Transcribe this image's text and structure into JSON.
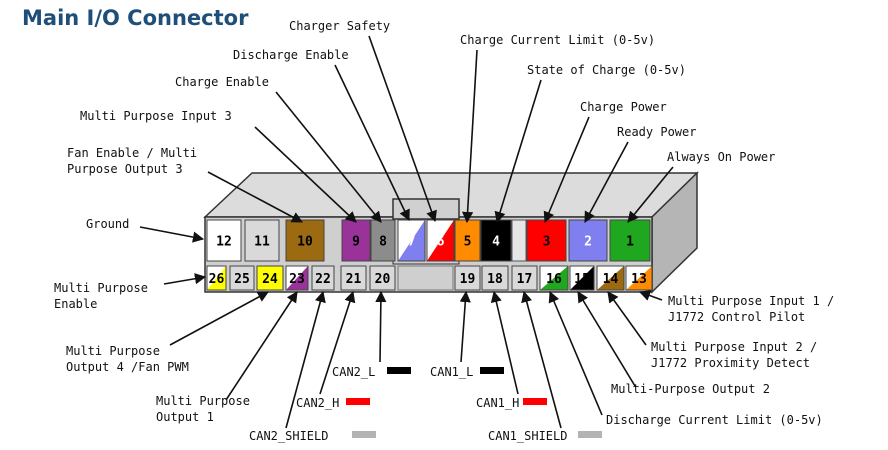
{
  "title": "Main I/O Connector",
  "colors": {
    "title": "#1f4e79",
    "housing": "#cfcfcf",
    "housing_dark": "#a9a9a9",
    "outline": "#333333"
  },
  "pins": [
    {
      "num": "1",
      "fill": "#1fa81f",
      "text_color": "#000000"
    },
    {
      "num": "2",
      "fill": "#7f7ff0",
      "text_color": "#ffffff"
    },
    {
      "num": "3",
      "fill": "#ff0000",
      "text_color": "#000000"
    },
    {
      "num": "4",
      "fill": "#000000",
      "text_color": "#ffffff"
    },
    {
      "num": "5",
      "fill": "#ff8c00",
      "text_color": "#000000"
    },
    {
      "num": "6",
      "fill": "#ff0000",
      "fill2": "#ffffff",
      "text_color": "#ffffff"
    },
    {
      "num": "7",
      "fill": "#7f7ff0",
      "fill2": "#ffffff",
      "text_color": "#ffffff"
    },
    {
      "num": "8",
      "fill": "#8c8c8c",
      "text_color": "#000000"
    },
    {
      "num": "9",
      "fill": "#993399",
      "text_color": "#000000"
    },
    {
      "num": "10",
      "fill": "#9c6a10",
      "text_color": "#000000"
    },
    {
      "num": "11",
      "fill": "#d9d9d9",
      "text_color": "#000000"
    },
    {
      "num": "12",
      "fill": "#ffffff",
      "text_color": "#000000"
    },
    {
      "num": "13",
      "fill": "#ff8c00",
      "fill2": "#ffffff",
      "text_color": "#000000"
    },
    {
      "num": "14",
      "fill": "#9c6a10",
      "fill2": "#ffffff",
      "text_color": "#000000"
    },
    {
      "num": "15",
      "fill": "#000000",
      "fill2": "#ffffff",
      "text_color": "#000000"
    },
    {
      "num": "16",
      "fill": "#1fa81f",
      "fill2": "#ffffff",
      "text_color": "#000000"
    },
    {
      "num": "17",
      "fill": "#d9d9d9",
      "text_color": "#000000"
    },
    {
      "num": "18",
      "fill": "#d9d9d9",
      "text_color": "#000000"
    },
    {
      "num": "19",
      "fill": "#d9d9d9",
      "text_color": "#000000"
    },
    {
      "num": "20",
      "fill": "#d9d9d9",
      "text_color": "#000000"
    },
    {
      "num": "21",
      "fill": "#d9d9d9",
      "text_color": "#000000"
    },
    {
      "num": "22",
      "fill": "#d9d9d9",
      "text_color": "#000000"
    },
    {
      "num": "23",
      "fill": "#993399",
      "fill2": "#ffffff",
      "text_color": "#000000"
    },
    {
      "num": "24",
      "fill": "#ffff00",
      "text_color": "#000000"
    },
    {
      "num": "25",
      "fill": "#d9d9d9",
      "text_color": "#000000"
    },
    {
      "num": "26",
      "fill": "#ffff00",
      "fill2": "#ffffff",
      "text_color": "#000000"
    }
  ],
  "labels": [
    {
      "text": "Charger Safety",
      "pin": "6"
    },
    {
      "text": "Discharge Enable",
      "pin": "7"
    },
    {
      "text": "Charge Enable",
      "pin": "8"
    },
    {
      "text": "Multi Purpose Input 3",
      "pin": "9"
    },
    {
      "text": "Fan Enable / Multi",
      "pin": "10"
    },
    {
      "text": "Purpose Output 3",
      "pin": "10"
    },
    {
      "text": "Ground",
      "pin": "12"
    },
    {
      "text": "Charge Current Limit (0-5v)",
      "pin": "5"
    },
    {
      "text": "State of Charge (0-5v)",
      "pin": "4"
    },
    {
      "text": "Charge Power",
      "pin": "3"
    },
    {
      "text": "Ready Power",
      "pin": "2"
    },
    {
      "text": "Always On Power",
      "pin": "1"
    },
    {
      "text": "Multi Purpose",
      "pin": "26"
    },
    {
      "text": "Enable",
      "pin": "26"
    },
    {
      "text": "Multi Purpose",
      "pin": "24"
    },
    {
      "text": "Output 4 /Fan PWM",
      "pin": "24"
    },
    {
      "text": "Multi Purpose",
      "pin": "23"
    },
    {
      "text": "Output 1",
      "pin": "23"
    },
    {
      "text": "CAN2_SHIELD",
      "pin": "22",
      "swatch": "#b3b3b3"
    },
    {
      "text": "CAN2_H",
      "pin": "21",
      "swatch": "#ff0000"
    },
    {
      "text": "CAN2_L",
      "pin": "20",
      "swatch": "#000000"
    },
    {
      "text": "CAN1_L",
      "pin": "19",
      "swatch": "#000000"
    },
    {
      "text": "CAN1_H",
      "pin": "18",
      "swatch": "#ff0000"
    },
    {
      "text": "CAN1_SHIELD",
      "pin": "17",
      "swatch": "#b3b3b3"
    },
    {
      "text": "Discharge Current Limit (0-5v)",
      "pin": "16"
    },
    {
      "text": "Multi-Purpose Output 2",
      "pin": "15"
    },
    {
      "text": "Multi Purpose Input 2 /",
      "pin": "14"
    },
    {
      "text": "J1772 Proximity Detect",
      "pin": "14"
    },
    {
      "text": "Multi Purpose Input 1 /",
      "pin": "13"
    },
    {
      "text": "J1772 Control Pilot",
      "pin": "13"
    }
  ]
}
